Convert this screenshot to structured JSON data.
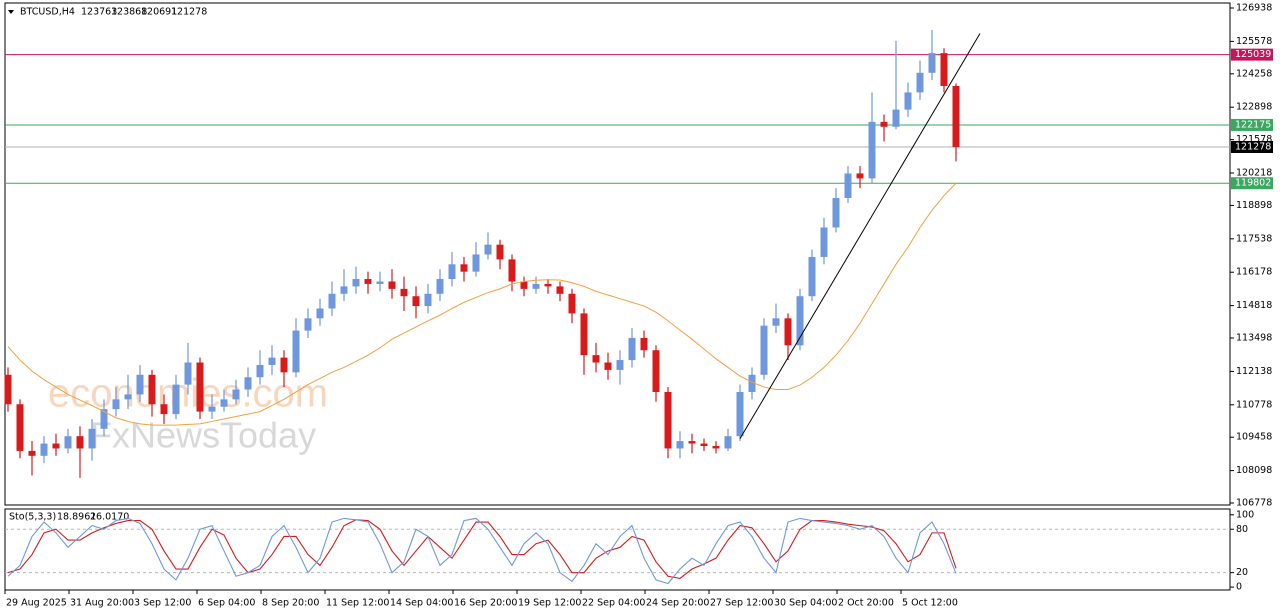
{
  "chart_data": {
    "type": "candlestick",
    "symbol": "BTCUSD,H4",
    "watermark": [
      "economies.com",
      "FxNewsToday"
    ],
    "up_color": "#6f97dc",
    "down_color": "#d91a1a",
    "ma_color": "#f0a040",
    "ylim": [
      106697,
      127142
    ],
    "yticks": [
      126938,
      125578,
      124258,
      122898,
      121578,
      120218,
      118898,
      117538,
      116178,
      114818,
      113498,
      112138,
      110778,
      109458,
      108098,
      106778
    ],
    "open": [
      112000,
      110800,
      108900,
      108700,
      109200,
      109000,
      109500,
      109000,
      109800,
      110600,
      111000,
      111200,
      112000,
      110800,
      110400,
      111600,
      112500,
      110500,
      110700,
      111000,
      111400,
      111900,
      112400,
      112700,
      112100,
      113800,
      114300,
      114700,
      115300,
      115600,
      115900,
      115700,
      115800,
      115500,
      115200,
      114800,
      115300,
      115900,
      116500,
      116200,
      116900,
      117300,
      116700,
      115800,
      115500,
      115700,
      115600,
      115300,
      114500,
      112800,
      112500,
      112200,
      112600,
      113500,
      113000,
      111300,
      109000,
      109300,
      109200,
      109100,
      109000,
      109500,
      111300,
      112000,
      114000,
      114300,
      113200,
      115200,
      116800,
      118000,
      119200,
      120200,
      120000,
      122300,
      122100,
      122800,
      123500,
      124300,
      125100,
      123763
    ],
    "high": [
      112300,
      111000,
      109300,
      109500,
      109600,
      109800,
      109900,
      110200,
      111000,
      111500,
      112000,
      112400,
      112200,
      111200,
      112000,
      113300,
      112700,
      111200,
      111400,
      111800,
      112300,
      113000,
      113200,
      113000,
      114300,
      114700,
      115100,
      115800,
      116300,
      116400,
      116200,
      116200,
      116300,
      116000,
      115600,
      115700,
      116300,
      117000,
      116800,
      117400,
      117800,
      117500,
      116900,
      116000,
      116000,
      115900,
      115800,
      115500,
      114700,
      113300,
      112900,
      113000,
      113900,
      113800,
      113200,
      111500,
      109700,
      109600,
      109400,
      109300,
      109800,
      111600,
      112300,
      114300,
      114900,
      114500,
      115500,
      117100,
      118400,
      119600,
      120500,
      120500,
      123500,
      122600,
      125600,
      123900,
      124800,
      126040,
      125300,
      123868
    ],
    "low": [
      110500,
      108600,
      107900,
      108400,
      108700,
      108800,
      107800,
      108500,
      109500,
      110300,
      110600,
      110900,
      110300,
      110000,
      110200,
      111200,
      110200,
      110200,
      110500,
      110800,
      111100,
      111600,
      112000,
      111500,
      111900,
      113500,
      114000,
      114400,
      115000,
      115300,
      115300,
      115400,
      115100,
      114600,
      114300,
      114500,
      115000,
      115600,
      115800,
      116000,
      116700,
      116300,
      115400,
      115200,
      115300,
      115300,
      115000,
      114100,
      112000,
      112100,
      111800,
      111600,
      112300,
      112700,
      110900,
      108600,
      108600,
      108800,
      108900,
      108800,
      108900,
      109300,
      111000,
      111800,
      113700,
      112600,
      113000,
      115000,
      116500,
      117800,
      119000,
      119600,
      119800,
      121500,
      122000,
      122500,
      123200,
      124000,
      123500,
      120691
    ],
    "close": [
      110800,
      108900,
      108700,
      109200,
      109000,
      109500,
      109000,
      109800,
      110600,
      111000,
      111200,
      112000,
      110800,
      110400,
      111600,
      112500,
      110500,
      110700,
      111000,
      111400,
      111900,
      112400,
      112700,
      112100,
      113800,
      114300,
      114700,
      115300,
      115600,
      115900,
      115700,
      115800,
      115500,
      115200,
      114800,
      115300,
      115900,
      116500,
      116200,
      116900,
      117300,
      116700,
      115800,
      115500,
      115700,
      115600,
      115300,
      114500,
      112800,
      112500,
      112200,
      112600,
      113500,
      113000,
      111300,
      109000,
      109300,
      109200,
      109100,
      109000,
      109500,
      111300,
      112000,
      114000,
      114300,
      113200,
      115200,
      116800,
      118000,
      119200,
      120200,
      120000,
      122300,
      122100,
      122800,
      123500,
      124300,
      125100,
      123763,
      121278
    ],
    "ma": [
      113150,
      112600,
      112150,
      111800,
      111500,
      111200,
      110970,
      110750,
      110500,
      110250,
      110100,
      110000,
      109950,
      109950,
      109950,
      109980,
      110000,
      110100,
      110200,
      110300,
      110400,
      110500,
      110750,
      111000,
      111300,
      111600,
      111850,
      112100,
      112300,
      112550,
      112800,
      113100,
      113450,
      113700,
      113950,
      114200,
      114430,
      114700,
      114950,
      115150,
      115350,
      115500,
      115700,
      115800,
      115850,
      115870,
      115860,
      115750,
      115600,
      115400,
      115250,
      115100,
      114950,
      114800,
      114550,
      114200,
      113820,
      113450,
      113050,
      112650,
      112300,
      111950,
      111700,
      111500,
      111400,
      111400,
      111580,
      111900,
      112300,
      112800,
      113400,
      114100,
      114900,
      115700,
      116500,
      117200,
      118000,
      118700,
      119300,
      119800
    ],
    "hlines": [
      {
        "value": 125039,
        "label": "125039",
        "color": "#c2185b"
      },
      {
        "value": 122175,
        "label": "122175",
        "color": "#3aa860"
      },
      {
        "value": 121278,
        "label": "121278",
        "color": "#000000"
      },
      {
        "value": 119802,
        "label": "119802",
        "color": "#3aa860"
      }
    ],
    "trendline": {
      "start_index": 61,
      "start": 109400,
      "end_index": 81,
      "end": 125900
    },
    "xlabels": [
      "29 Aug 2025",
      "31 Aug 20:00",
      "3 Sep 12:00",
      "6 Sep 04:00",
      "8 Sep 20:00",
      "11 Sep 12:00",
      "14 Sep 04:00",
      "16 Sep 20:00",
      "19 Sep 12:00",
      "22 Sep 04:00",
      "24 Sep 20:00",
      "27 Sep 12:00",
      "30 Sep 04:00",
      "2 Oct 20:00",
      "5 Oct 12:00"
    ],
    "stoch": {
      "name": "Sto(5,3,3)",
      "ylim": [
        -4,
        108
      ],
      "yticks": [
        100,
        80,
        20,
        0
      ],
      "levels": [
        80,
        20
      ],
      "main_color": "#6f97dc",
      "signal_color": "#d91a1a",
      "main": [
        15,
        30,
        70,
        90,
        75,
        55,
        70,
        85,
        80,
        92,
        95,
        88,
        60,
        25,
        10,
        40,
        80,
        85,
        50,
        15,
        20,
        30,
        70,
        85,
        55,
        20,
        40,
        90,
        95,
        93,
        90,
        60,
        20,
        35,
        80,
        70,
        30,
        45,
        92,
        95,
        80,
        55,
        30,
        60,
        75,
        60,
        20,
        8,
        30,
        60,
        45,
        70,
        85,
        40,
        10,
        5,
        25,
        40,
        30,
        60,
        85,
        90,
        70,
        40,
        20,
        90,
        95,
        92,
        90,
        88,
        85,
        80,
        85,
        70,
        40,
        20,
        75,
        90,
        60,
        18.8961
      ],
      "signal": [
        20,
        25,
        45,
        75,
        80,
        65,
        65,
        75,
        82,
        88,
        92,
        92,
        80,
        50,
        25,
        25,
        55,
        80,
        72,
        40,
        20,
        25,
        45,
        70,
        70,
        45,
        30,
        55,
        85,
        93,
        92,
        80,
        50,
        30,
        50,
        70,
        55,
        40,
        65,
        90,
        90,
        70,
        45,
        45,
        60,
        65,
        45,
        20,
        20,
        40,
        50,
        55,
        70,
        65,
        35,
        15,
        12,
        25,
        32,
        40,
        65,
        85,
        82,
        60,
        35,
        50,
        80,
        92,
        92,
        90,
        87,
        85,
        83,
        78,
        60,
        35,
        45,
        75,
        75,
        26.017
      ],
      "value_labels": [
        "18.8961",
        "26.0170"
      ]
    }
  }
}
